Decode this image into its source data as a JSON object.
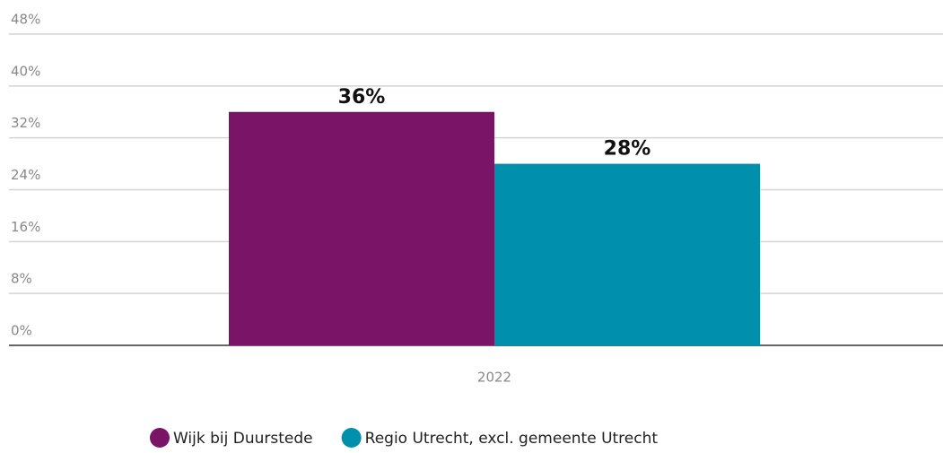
{
  "chart_data": {
    "type": "bar",
    "categories": [
      "2022"
    ],
    "series": [
      {
        "name": "Wijk bij Duurstede",
        "color": "#7a1466",
        "values": [
          36
        ],
        "value_labels": [
          "36%"
        ]
      },
      {
        "name": "Regio Utrecht, excl. gemeente Utrecht",
        "color": "#0090ad",
        "values": [
          28
        ],
        "value_labels": [
          "28%"
        ]
      }
    ],
    "ylim": [
      0,
      48
    ],
    "yticks": [
      {
        "value": 0,
        "label": "0%"
      },
      {
        "value": 8,
        "label": "8%"
      },
      {
        "value": 16,
        "label": "16%"
      },
      {
        "value": 24,
        "label": "24%"
      },
      {
        "value": 32,
        "label": "32%"
      },
      {
        "value": 40,
        "label": "40%"
      },
      {
        "value": 48,
        "label": "48%"
      }
    ],
    "grid": true,
    "legend": "bottom"
  }
}
